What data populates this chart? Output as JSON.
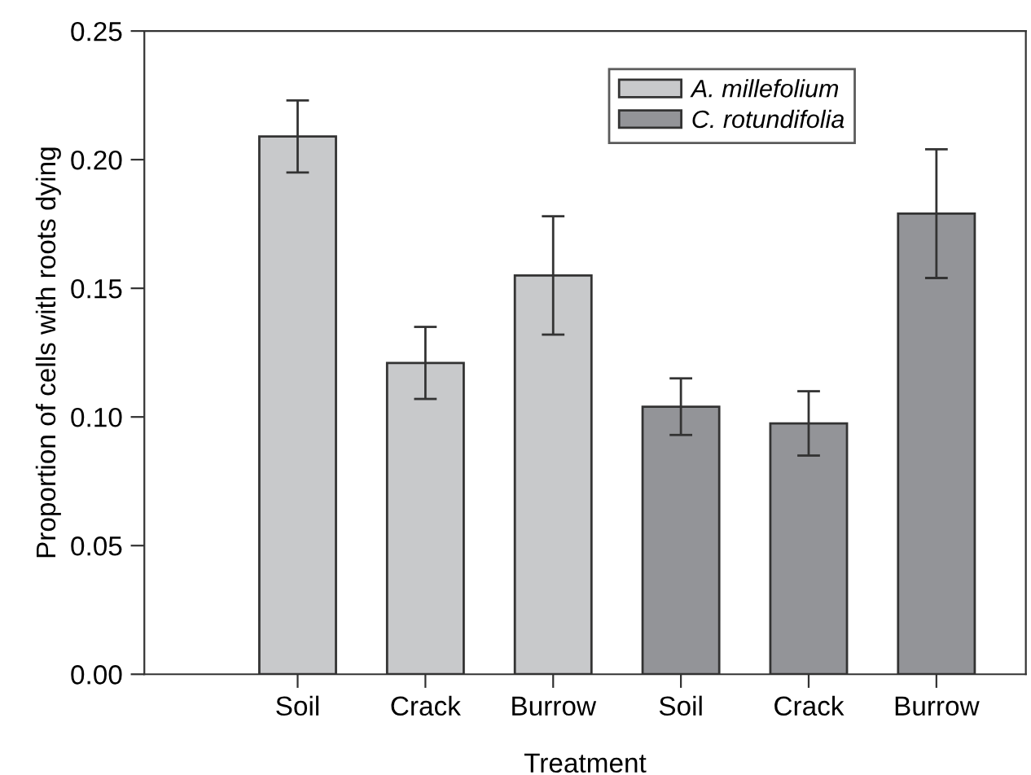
{
  "chart_data": {
    "type": "bar",
    "xlabel": "Treatment",
    "ylabel": "Proportion of cells with roots dying",
    "categories": [
      "Soil",
      "Crack",
      "Burrow",
      "Soil",
      "Crack",
      "Burrow"
    ],
    "series": [
      {
        "name": "A. millefolium",
        "color": "#c8c9cb",
        "values": [
          0.209,
          0.121,
          0.155,
          null,
          null,
          null
        ],
        "errors": [
          0.014,
          0.014,
          0.023,
          null,
          null,
          null
        ]
      },
      {
        "name": "C. rotundifolia",
        "color": "#939498",
        "values": [
          null,
          null,
          null,
          0.104,
          0.0975,
          0.179
        ],
        "errors": [
          null,
          null,
          null,
          0.011,
          0.0125,
          0.025
        ]
      }
    ],
    "ylim": [
      0,
      0.25
    ],
    "yticks": [
      {
        "value": 0,
        "label": "0.00"
      },
      {
        "value": 0.05,
        "label": "0.05"
      },
      {
        "value": 0.1,
        "label": "0.10"
      },
      {
        "value": 0.15,
        "label": "0.15"
      },
      {
        "value": 0.2,
        "label": "0.20"
      },
      {
        "value": 0.25,
        "label": "0.25"
      }
    ],
    "legend": "top right",
    "grid": false
  }
}
